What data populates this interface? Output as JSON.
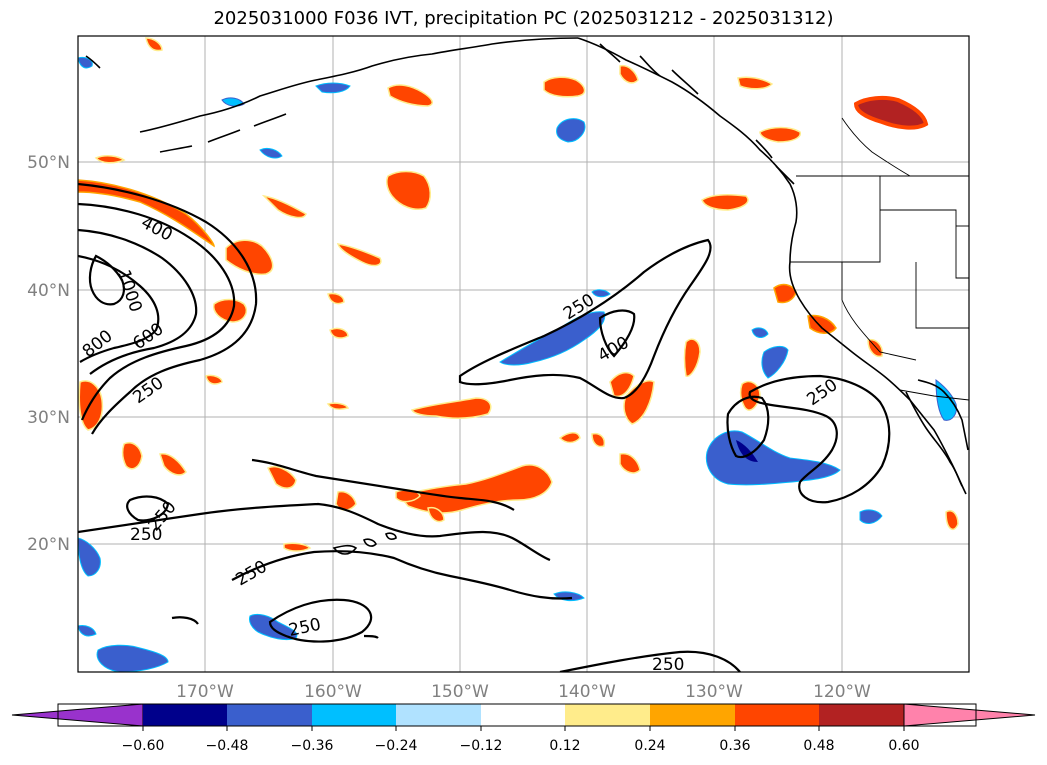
{
  "title": "2025031000 F036 IVT, precipitation PC (2025031212 - 2025031312)",
  "map": {
    "lon_labels": [
      "170°W",
      "160°W",
      "150°W",
      "140°W",
      "130°W",
      "120°W"
    ],
    "lat_labels": [
      "50°N",
      "40°N",
      "30°N",
      "20°N"
    ],
    "contour_labels": [
      "400",
      "1000",
      "800",
      "600",
      "250",
      "250",
      "400",
      "250",
      "250",
      "250",
      "250",
      "250",
      "250"
    ],
    "colors": {
      "land_outline": "#000000",
      "grid": "#b0b0b0",
      "ivt_contour": "#000000"
    }
  },
  "colorbar": {
    "levels": [
      "−0.60",
      "−0.48",
      "−0.36",
      "−0.24",
      "−0.12",
      "0.12",
      "0.24",
      "0.36",
      "0.48",
      "0.60"
    ],
    "colors": [
      "#9932cc",
      "#00008b",
      "#3a5fcd",
      "#00bfff",
      "#b0e2ff",
      "#ffffff",
      "#ffec8b",
      "#ffa500",
      "#ff4500",
      "#b22222",
      "#ff82ab"
    ]
  }
}
